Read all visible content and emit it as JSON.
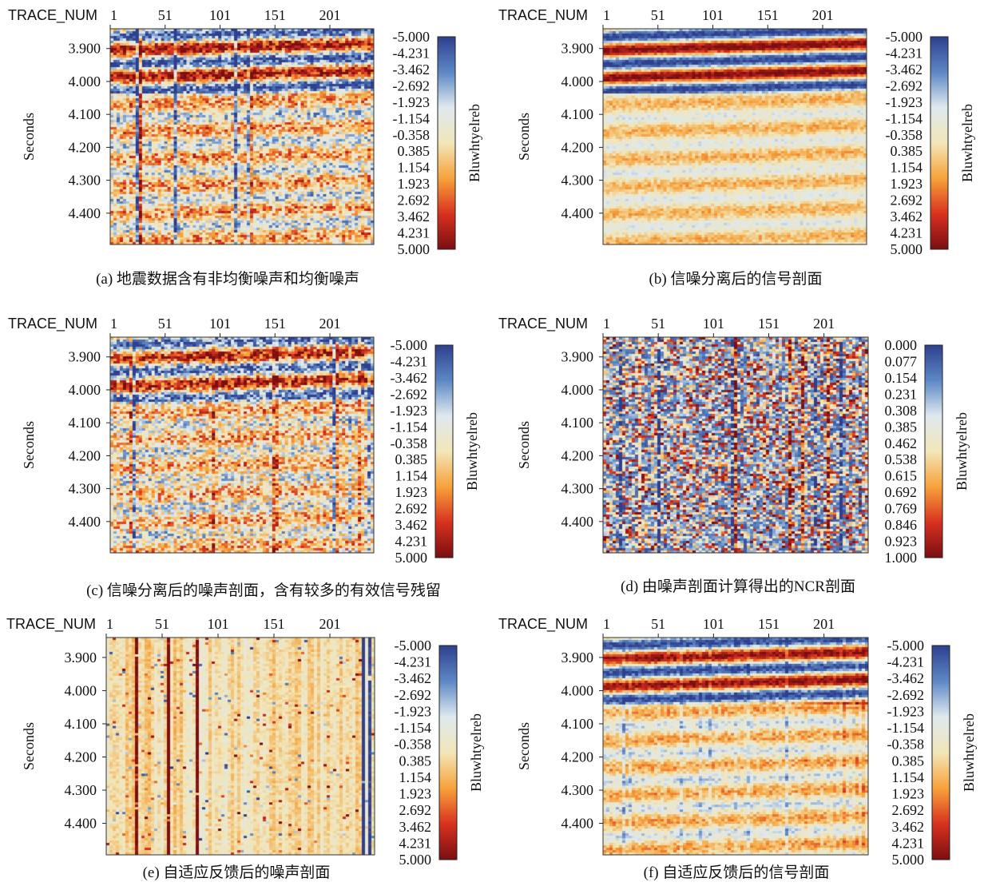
{
  "chart_data": [
    {
      "type": "heatmap",
      "id": "a",
      "caption": "(a) 地震数据含有非均衡噪声和均衡噪声",
      "xlabel": "TRACE_NUM",
      "ylabel": "Seconds",
      "x_ticks": [
        "1",
        "51",
        "101",
        "151",
        "201"
      ],
      "y_ticks": [
        "3.900",
        "4.000",
        "4.100",
        "4.200",
        "4.300",
        "4.400"
      ],
      "colorbar_label": "Bluwhtyelreb",
      "colorbar_ticks": [
        "-5.000",
        "-4.231",
        "-3.462",
        "-2.692",
        "-1.923",
        "-1.154",
        "-0.358",
        "0.385",
        "1.154",
        "1.923",
        "2.692",
        "3.462",
        "4.231",
        "5.000"
      ],
      "value_range": [
        -5.0,
        5.0
      ],
      "colormap": [
        "#2e3f8f",
        "#5d88c4",
        "#dfe9ef",
        "#f2e6b8",
        "#f7a23a",
        "#d8321f",
        "#7a0e12"
      ]
    },
    {
      "type": "heatmap",
      "id": "b",
      "caption": "(b) 信噪分离后的信号剖面",
      "xlabel": "TRACE_NUM",
      "ylabel": "Seconds",
      "x_ticks": [
        "1",
        "51",
        "101",
        "151",
        "201"
      ],
      "y_ticks": [
        "3.900",
        "4.000",
        "4.100",
        "4.200",
        "4.300",
        "4.400"
      ],
      "colorbar_label": "Bluwhtyelreb",
      "colorbar_ticks": [
        "-5.000",
        "-4.231",
        "-3.462",
        "-2.692",
        "-1.923",
        "-1.154",
        "-0.358",
        "0.385",
        "1.154",
        "1.923",
        "2.692",
        "3.462",
        "4.231",
        "5.000"
      ],
      "value_range": [
        -5.0,
        5.0
      ],
      "colormap": [
        "#2e3f8f",
        "#5d88c4",
        "#dfe9ef",
        "#f2e6b8",
        "#f7a23a",
        "#d8321f",
        "#7a0e12"
      ]
    },
    {
      "type": "heatmap",
      "id": "c",
      "caption": "(c) 信噪分离后的噪声剖面，含有较多的有效信号残留",
      "xlabel": "TRACE_NUM",
      "ylabel": "Seconds",
      "x_ticks": [
        "1",
        "51",
        "101",
        "151",
        "201"
      ],
      "y_ticks": [
        "3.900",
        "4.000",
        "4.100",
        "4.200",
        "4.300",
        "4.400"
      ],
      "colorbar_label": "Bluwhtyelreb",
      "colorbar_ticks": [
        "-5.000",
        "-4.231",
        "-3.462",
        "-2.692",
        "-1.923",
        "-1.154",
        "-0.358",
        "0.385",
        "1.154",
        "1.923",
        "2.692",
        "3.462",
        "4.231",
        "5.000"
      ],
      "value_range": [
        -5.0,
        5.0
      ],
      "colormap": [
        "#2e3f8f",
        "#5d88c4",
        "#dfe9ef",
        "#f2e6b8",
        "#f7a23a",
        "#d8321f",
        "#7a0e12"
      ]
    },
    {
      "type": "heatmap",
      "id": "d",
      "caption": "(d) 由噪声剖面计算得出的NCR剖面",
      "xlabel": "TRACE_NUM",
      "ylabel": "Seconds",
      "x_ticks": [
        "1",
        "51",
        "101",
        "151",
        "201"
      ],
      "y_ticks": [
        "3.900",
        "4.000",
        "4.100",
        "4.200",
        "4.300",
        "4.400"
      ],
      "colorbar_label": "Bluwhtyelreb",
      "colorbar_ticks": [
        "0.000",
        "0.077",
        "0.154",
        "0.231",
        "0.308",
        "0.385",
        "0.462",
        "0.538",
        "0.615",
        "0.692",
        "0.769",
        "0.846",
        "0.923",
        "1.000"
      ],
      "value_range": [
        0.0,
        1.0
      ],
      "colormap": [
        "#2e3f8f",
        "#5d88c4",
        "#dfe9ef",
        "#f2e6b8",
        "#f7a23a",
        "#d8321f",
        "#7a0e12"
      ]
    },
    {
      "type": "heatmap",
      "id": "e",
      "caption": "(e) 自适应反馈后的噪声剖面",
      "xlabel": "TRACE_NUM",
      "ylabel": "Seconds",
      "x_ticks": [
        "1",
        "51",
        "101",
        "151",
        "201"
      ],
      "y_ticks": [
        "3.900",
        "4.000",
        "4.100",
        "4.200",
        "4.300",
        "4.400"
      ],
      "colorbar_label": "Bluwhtyelreb",
      "colorbar_ticks": [
        "-5.000",
        "-4.231",
        "-3.462",
        "-2.692",
        "-1.923",
        "-1.154",
        "-0.358",
        "0.385",
        "1.154",
        "1.923",
        "2.692",
        "3.462",
        "4.231",
        "5.000"
      ],
      "value_range": [
        -5.0,
        5.0
      ],
      "colormap": [
        "#2e3f8f",
        "#5d88c4",
        "#dfe9ef",
        "#f2e6b8",
        "#f7a23a",
        "#d8321f",
        "#7a0e12"
      ]
    },
    {
      "type": "heatmap",
      "id": "f",
      "caption": "(f) 自适应反馈后的信号剖面",
      "xlabel": "TRACE_NUM",
      "ylabel": "Seconds",
      "x_ticks": [
        "1",
        "51",
        "101",
        "151",
        "201"
      ],
      "y_ticks": [
        "3.900",
        "4.000",
        "4.100",
        "4.200",
        "4.300",
        "4.400"
      ],
      "colorbar_label": "Bluwhtyelreb",
      "colorbar_ticks": [
        "-5.000",
        "-4.231",
        "-3.462",
        "-2.692",
        "-1.923",
        "-1.154",
        "-0.358",
        "0.385",
        "1.154",
        "1.923",
        "2.692",
        "3.462",
        "4.231",
        "5.000"
      ],
      "value_range": [
        -5.0,
        5.0
      ],
      "colormap": [
        "#2e3f8f",
        "#5d88c4",
        "#dfe9ef",
        "#f2e6b8",
        "#f7a23a",
        "#d8321f",
        "#7a0e12"
      ]
    }
  ]
}
